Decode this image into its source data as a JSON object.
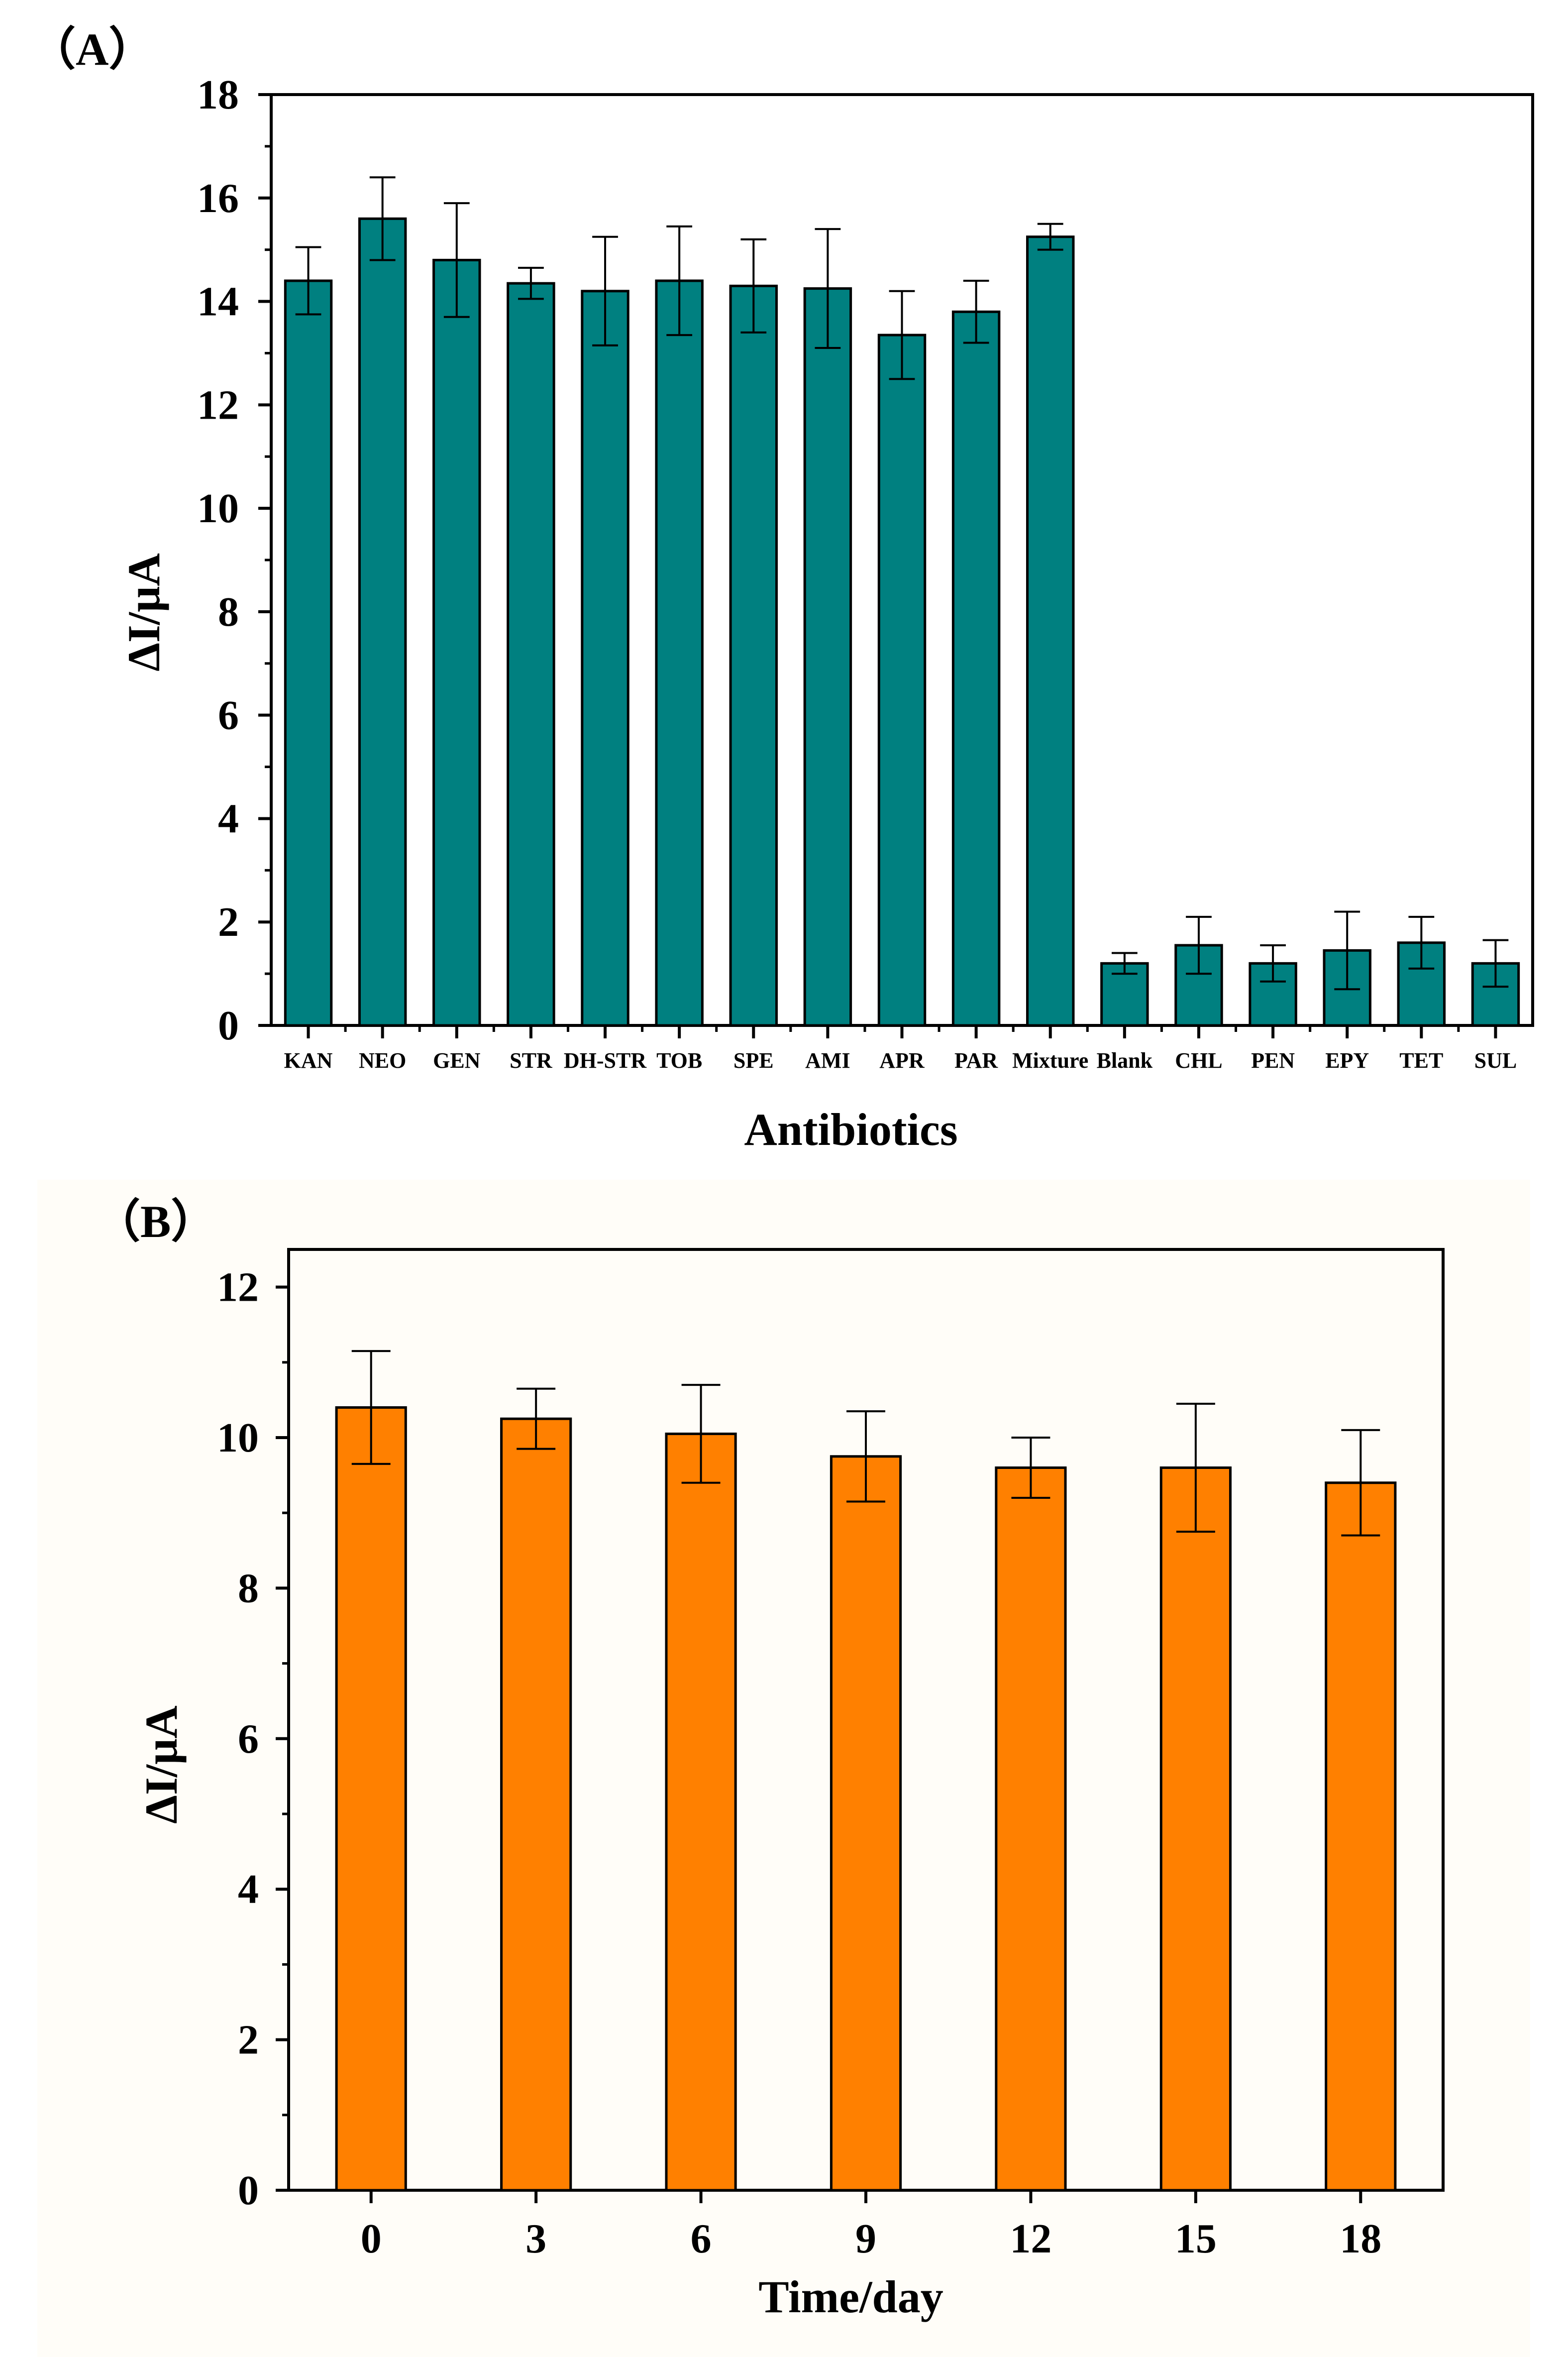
{
  "chart_data": [
    {
      "type": "bar",
      "panel_label": "（A）",
      "xlabel": "Antibiotics",
      "ylabel": "ΔI/μA",
      "ylim": [
        0,
        18
      ],
      "yticks": [
        "0",
        "2",
        "4",
        "6",
        "8",
        "10",
        "12",
        "14",
        "16",
        "18"
      ],
      "bar_color": "#008080",
      "categories": [
        "KAN",
        "NEO",
        "GEN",
        "STR",
        "DH-STR",
        "TOB",
        "SPE",
        "AMI",
        "APR",
        "PAR",
        "Mixture",
        "Blank",
        "CHL",
        "PEN",
        "EPY",
        "TET",
        "SUL"
      ],
      "values": [
        14.4,
        15.6,
        14.8,
        14.35,
        14.2,
        14.4,
        14.3,
        14.25,
        13.35,
        13.8,
        15.25,
        1.2,
        1.55,
        1.2,
        1.45,
        1.6,
        1.2
      ],
      "errors": [
        0.65,
        0.8,
        1.1,
        0.3,
        1.05,
        1.05,
        0.9,
        1.15,
        0.85,
        0.6,
        0.25,
        0.2,
        0.55,
        0.35,
        0.75,
        0.5,
        0.45
      ]
    },
    {
      "type": "bar",
      "panel_label": "（B）",
      "xlabel": "Time/day",
      "ylabel": "ΔI/μA",
      "ylim": [
        0,
        12.5
      ],
      "yticks": [
        "0",
        "2",
        "4",
        "6",
        "8",
        "10",
        "12"
      ],
      "bar_color": "#ff8000",
      "categories": [
        "0",
        "3",
        "6",
        "9",
        "12",
        "15",
        "18"
      ],
      "values": [
        10.4,
        10.25,
        10.05,
        9.75,
        9.6,
        9.6,
        9.4
      ],
      "errors": [
        0.75,
        0.4,
        0.65,
        0.6,
        0.4,
        0.85,
        0.7
      ]
    }
  ]
}
